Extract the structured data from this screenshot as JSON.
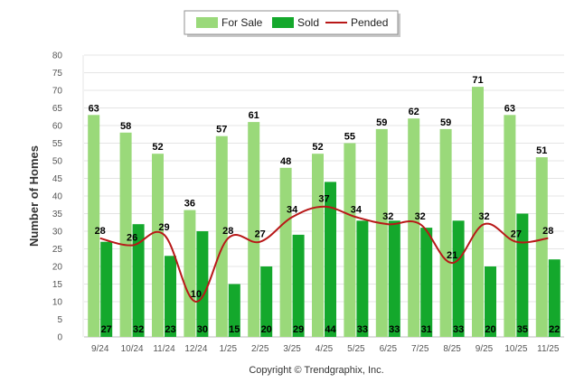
{
  "chart_data": {
    "type": "bar",
    "categories": [
      "9/24",
      "10/24",
      "11/24",
      "12/24",
      "1/25",
      "2/25",
      "3/25",
      "4/25",
      "5/25",
      "6/25",
      "7/25",
      "8/25",
      "9/25",
      "10/25",
      "11/25"
    ],
    "series": [
      {
        "name": "For Sale",
        "type": "bar",
        "color": "#9ad97a",
        "values": [
          63,
          58,
          52,
          36,
          57,
          61,
          48,
          52,
          55,
          59,
          62,
          59,
          71,
          63,
          51
        ]
      },
      {
        "name": "Sold",
        "type": "bar",
        "color": "#14a82c",
        "values": [
          27,
          32,
          23,
          30,
          15,
          20,
          29,
          44,
          33,
          33,
          31,
          33,
          20,
          35,
          22
        ]
      },
      {
        "name": "Pended",
        "type": "line",
        "color": "#b81818",
        "values": [
          28,
          26,
          29,
          10,
          28,
          27,
          34,
          37,
          34,
          32,
          32,
          21,
          32,
          27,
          28
        ]
      }
    ],
    "title": "",
    "xlabel": "",
    "ylabel": "Number of Homes",
    "ylim": [
      0,
      80
    ],
    "yticks": [
      0,
      5,
      10,
      15,
      20,
      25,
      30,
      35,
      40,
      45,
      50,
      55,
      60,
      65,
      70,
      75,
      80
    ],
    "grid": true,
    "legend_position": "top-center",
    "credit": "Copyright © Trendgraphix, Inc."
  }
}
